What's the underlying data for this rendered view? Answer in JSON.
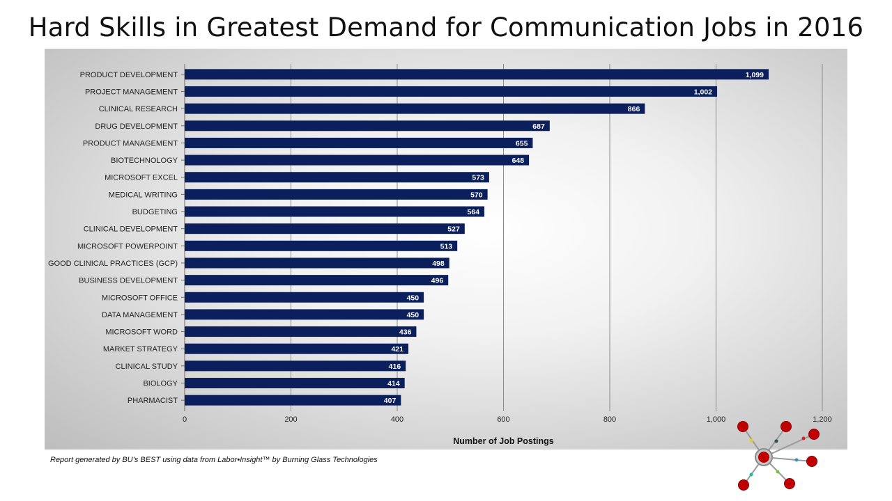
{
  "title": "Hard Skills in Greatest Demand for Communication Jobs in 2016",
  "footnote": "Report generated by BU’s BEST using data from Labor•Insight™ by Burning Glass Technologies",
  "colors": {
    "bar": "#0b1f5c",
    "bar_label": "#ffffff",
    "grid": "#8a8a8a",
    "text": "#222222"
  },
  "logo": {
    "icon": "network-nodes-logo-icon"
  },
  "chart_data": {
    "type": "bar",
    "orientation": "horizontal",
    "categories": [
      "PRODUCT DEVELOPMENT",
      "PROJECT MANAGEMENT",
      "CLINICAL RESEARCH",
      "DRUG DEVELOPMENT",
      "PRODUCT MANAGEMENT",
      "BIOTECHNOLOGY",
      "MICROSOFT EXCEL",
      "MEDICAL WRITING",
      "BUDGETING",
      "CLINICAL DEVELOPMENT",
      "MICROSOFT POWERPOINT",
      "GOOD CLINICAL PRACTICES (GCP)",
      "BUSINESS DEVELOPMENT",
      "MICROSOFT OFFICE",
      "DATA MANAGEMENT",
      "MICROSOFT WORD",
      "MARKET STRATEGY",
      "CLINICAL STUDY",
      "BIOLOGY",
      "PHARMACIST"
    ],
    "values": [
      1099,
      1002,
      866,
      687,
      655,
      648,
      573,
      570,
      564,
      527,
      513,
      498,
      496,
      450,
      450,
      436,
      421,
      416,
      414,
      407
    ],
    "value_labels": [
      "1,099",
      "1,002",
      "866",
      "687",
      "655",
      "648",
      "573",
      "570",
      "564",
      "527",
      "513",
      "498",
      "496",
      "450",
      "450",
      "436",
      "421",
      "416",
      "414",
      "407"
    ],
    "xlabel": "Number of Job Postings",
    "ylabel": "",
    "xlim": [
      0,
      1200
    ],
    "xticks": [
      0,
      200,
      400,
      600,
      800,
      1000,
      1200
    ],
    "xtick_labels": [
      "0",
      "200",
      "400",
      "600",
      "800",
      "1,000",
      "1,200"
    ],
    "grid": "vertical",
    "legend": "none"
  }
}
